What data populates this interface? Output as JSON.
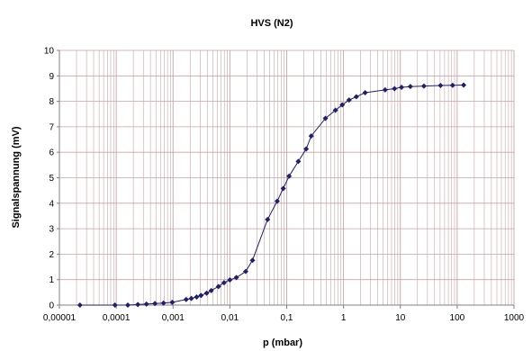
{
  "chart_data": {
    "type": "line",
    "title": "HVS (N2)",
    "xlabel": "p (mbar)",
    "ylabel": "Signalspannung (mV)",
    "x_scale": "log",
    "xlim": [
      1e-05,
      1000
    ],
    "ylim": [
      0,
      10
    ],
    "grid": true,
    "x_tick_labels": [
      "0,00001",
      "0,0001",
      "0,001",
      "0,01",
      "0,1",
      "1",
      "10",
      "100",
      "1000"
    ],
    "y_tick_labels": [
      "0",
      "1",
      "2",
      "3",
      "4",
      "5",
      "6",
      "7",
      "8",
      "9",
      "10"
    ],
    "colors": {
      "series": "#1f1f6b",
      "grid": "#c9a3a3",
      "axis": "#808080"
    },
    "series": [
      {
        "marker": "diamond",
        "x": [
          2.3e-05,
          9.5e-05,
          0.00016,
          0.00024,
          0.00034,
          0.00048,
          0.00068,
          0.00097,
          0.0017,
          0.0021,
          0.0026,
          0.0031,
          0.0039,
          0.0047,
          0.0063,
          0.0079,
          0.01,
          0.013,
          0.019,
          0.025,
          0.046,
          0.068,
          0.087,
          0.11,
          0.16,
          0.22,
          0.27,
          0.48,
          0.72,
          0.95,
          1.25,
          1.68,
          2.4,
          5.4,
          7.9,
          10.5,
          15,
          26,
          51,
          83,
          130
        ],
        "y": [
          0.0,
          0.0,
          0.0,
          0.02,
          0.04,
          0.06,
          0.08,
          0.11,
          0.22,
          0.26,
          0.32,
          0.38,
          0.47,
          0.57,
          0.73,
          0.88,
          0.99,
          1.08,
          1.32,
          1.76,
          3.36,
          4.08,
          4.58,
          5.06,
          5.64,
          6.13,
          6.64,
          7.33,
          7.65,
          7.86,
          8.05,
          8.18,
          8.34,
          8.45,
          8.5,
          8.55,
          8.58,
          8.6,
          8.62,
          8.63,
          8.64
        ]
      }
    ]
  }
}
